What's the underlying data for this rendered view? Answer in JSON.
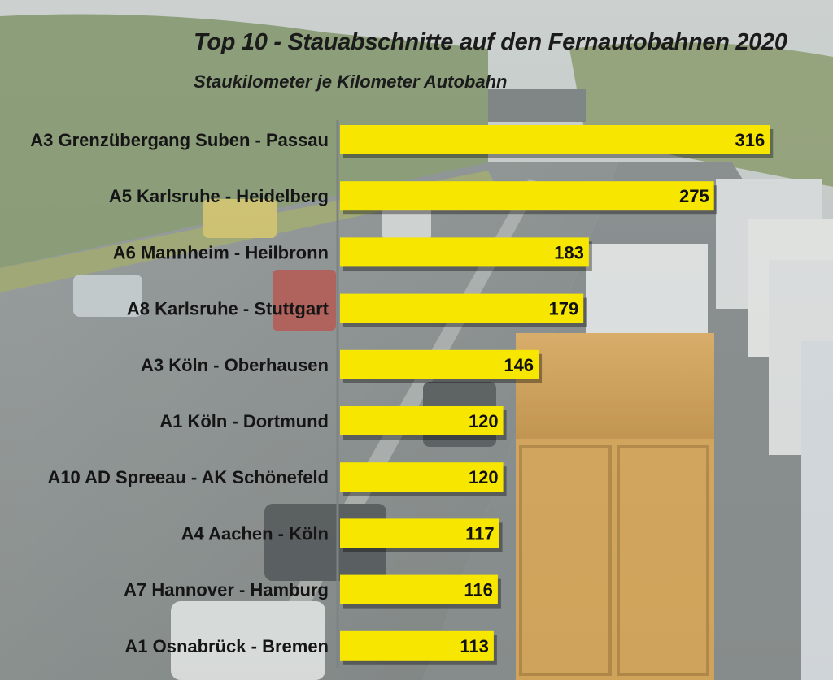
{
  "chart_data": {
    "type": "bar",
    "orientation": "horizontal",
    "title": "Top 10 - Stauabschnitte auf den Fernautobahnen 2020",
    "subtitle": "Staukilometer je Kilometer Autobahn",
    "categories": [
      "A3 Grenzübergang Suben - Passau",
      "A5 Karlsruhe - Heidelberg",
      "A6 Mannheim - Heilbronn",
      "A8 Karlsruhe - Stuttgart",
      "A3 Köln - Oberhausen",
      "A1 Köln - Dortmund",
      "A10 AD Spreeau - AK Schönefeld",
      "A4 Aachen - Köln",
      "A7 Hannover - Hamburg",
      "A1 Osnabrück - Bremen"
    ],
    "values": [
      316,
      275,
      183,
      179,
      146,
      120,
      120,
      117,
      116,
      113
    ],
    "data_labels": [
      "316",
      "275",
      "183",
      "179",
      "146",
      "120",
      "120",
      "117",
      "116",
      "113"
    ],
    "xlim": [
      0,
      335
    ],
    "bar_color": "#f7e600",
    "grid": false,
    "legend": "none"
  }
}
